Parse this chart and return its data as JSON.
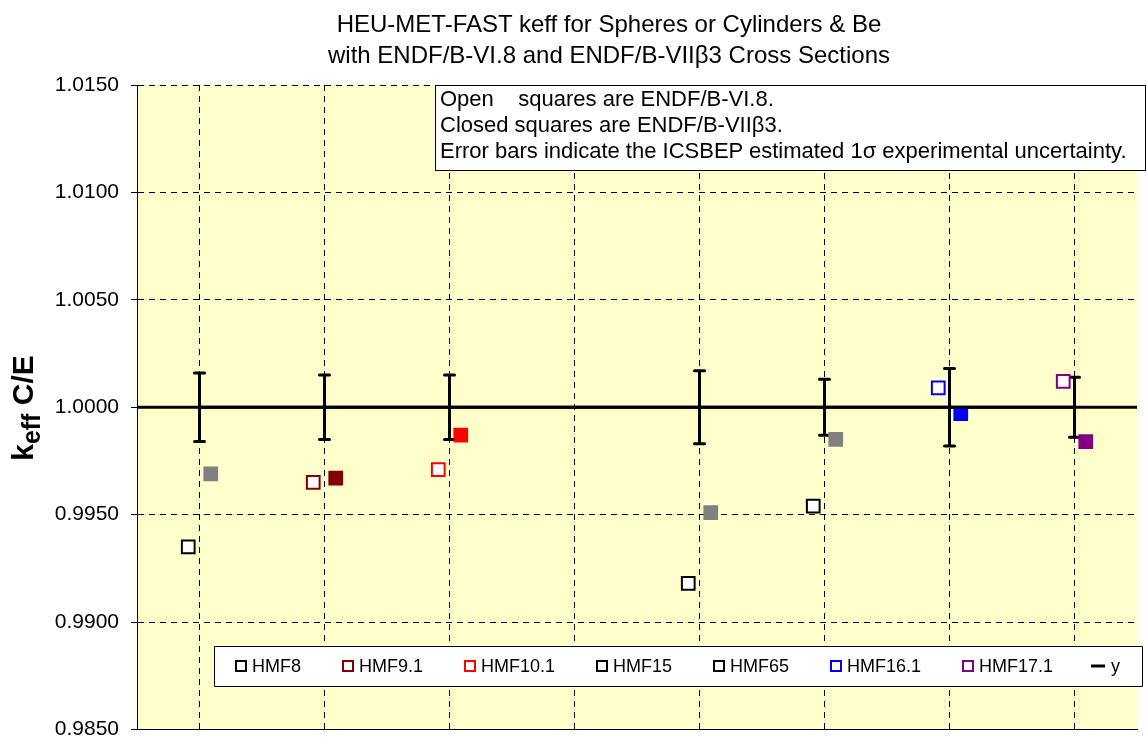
{
  "chart_data": {
    "type": "scatter",
    "title": "HEU-MET-FAST keff for Spheres or Cylinders & Be\nwith ENDF/B-VI.8 and ENDF/B-VIIβ3 Cross Sections",
    "ylabel": "k$_{eff}$ C/E",
    "annotations": [
      "Open    squares are ENDF/B-VI.8.",
      "Closed squares are ENDF/B-VIIβ3.",
      "Error bars indicate the ICSBEP estimated 1σ experimental uncertainty."
    ],
    "categories": [
      null,
      null,
      null,
      null,
      null,
      null,
      null,
      null
    ],
    "series": [
      {
        "name": "HMF8",
        "color": "#000000",
        "values": [
          0.9935,
          null,
          null,
          null,
          null,
          null,
          null,
          null
        ]
      },
      {
        "name": "HMF9.1",
        "color": "#800000",
        "values": [
          null,
          0.9965,
          null,
          null,
          null,
          null,
          null,
          null
        ]
      },
      {
        "name": "HMF10.1",
        "color": "#ff0000",
        "values": [
          null,
          null,
          0.9971,
          null,
          null,
          null,
          null,
          null
        ]
      },
      {
        "name": "HMF15",
        "color": "#000000",
        "values": [
          null,
          null,
          null,
          null,
          0.9918,
          null,
          null,
          null
        ]
      },
      {
        "name": "HMF65",
        "color": "#000000",
        "values": [
          null,
          null,
          null,
          null,
          null,
          0.9954,
          null,
          null
        ]
      },
      {
        "name": "HMF16.1",
        "color": "#0000ff",
        "values": [
          null,
          null,
          null,
          null,
          null,
          null,
          1.0009,
          null
        ]
      },
      {
        "name": "HMF17.1",
        "color": "#800080",
        "values": [
          null,
          null,
          null,
          null,
          null,
          null,
          null,
          1.0012
        ]
      },
      {
        "name": "y",
        "type": "line",
        "color": "#000000",
        "marker": "none",
        "values": [
          1,
          1,
          1,
          1,
          1,
          1,
          1,
          1
        ],
        "errors": [
          0.0016,
          0.0015,
          0.0015,
          null,
          0.0017,
          0.0013,
          0.0018,
          0.0014
        ]
      },
      {
        "colors": [
          "#808080",
          "#800000",
          "#ff0000",
          null,
          "#808080",
          "#808080",
          "#0000ff",
          "#800080"
        ],
        "values": [
          0.9969,
          0.9967,
          0.9987,
          null,
          0.9951,
          0.9985,
          0.9997,
          0.9984
        ]
      }
    ],
    "ylim": [
      0.985,
      1.015
    ],
    "yticks": [
      {
        "value": 0.985,
        "label": "0.9850"
      },
      {
        "value": 0.99,
        "label": "0.9900"
      },
      {
        "value": 0.995,
        "label": "0.9950"
      },
      {
        "value": 1,
        "label": "1.0000"
      },
      {
        "value": 1.005,
        "label": "1.0050"
      },
      {
        "value": 1.01,
        "label": "1.0100"
      },
      {
        "value": 1.015,
        "label": "1.0150"
      }
    ],
    "ref_lines": [
      {
        "axis": "y",
        "value": 1,
        "color": "#000000"
      }
    ],
    "grid": true,
    "legend": "bottom",
    "marker": "square",
    "tick_labels": "y"
  }
}
